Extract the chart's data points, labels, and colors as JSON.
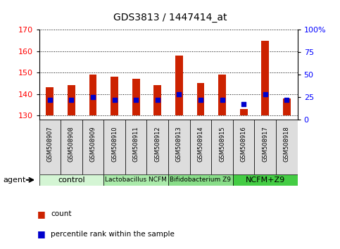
{
  "title": "GDS3813 / 1447414_at",
  "samples": [
    "GSM508907",
    "GSM508908",
    "GSM508909",
    "GSM508910",
    "GSM508911",
    "GSM508912",
    "GSM508913",
    "GSM508914",
    "GSM508915",
    "GSM508916",
    "GSM508917",
    "GSM508918"
  ],
  "count_values": [
    143,
    144,
    149,
    148,
    147,
    144,
    158,
    145,
    149,
    133,
    165,
    138
  ],
  "percentile_values": [
    22,
    22,
    25,
    22,
    22,
    22,
    28,
    22,
    22,
    17,
    28,
    22
  ],
  "bar_bottom": 130,
  "ylim_left": [
    128,
    170
  ],
  "ylim_right": [
    0,
    100
  ],
  "yticks_left": [
    130,
    140,
    150,
    160,
    170
  ],
  "yticks_right": [
    0,
    25,
    50,
    75,
    100
  ],
  "right_tick_labels": [
    "0",
    "25",
    "50",
    "75",
    "100%"
  ],
  "groups": [
    {
      "label": "control",
      "start": 0,
      "end": 2,
      "color": "#d4f5d4"
    },
    {
      "label": "Lactobacillus NCFM",
      "start": 3,
      "end": 5,
      "color": "#aaeaaa"
    },
    {
      "label": "Bifidobacterium Z9",
      "start": 6,
      "end": 8,
      "color": "#88dd88"
    },
    {
      "label": "NCFM+Z9",
      "start": 9,
      "end": 11,
      "color": "#44cc44"
    }
  ],
  "bar_color": "#cc2200",
  "dot_color": "#0000cc",
  "agent_label": "agent",
  "legend_items": [
    {
      "label": "count",
      "color": "#cc2200"
    },
    {
      "label": "percentile rank within the sample",
      "color": "#0000cc"
    }
  ],
  "bar_width": 0.35
}
